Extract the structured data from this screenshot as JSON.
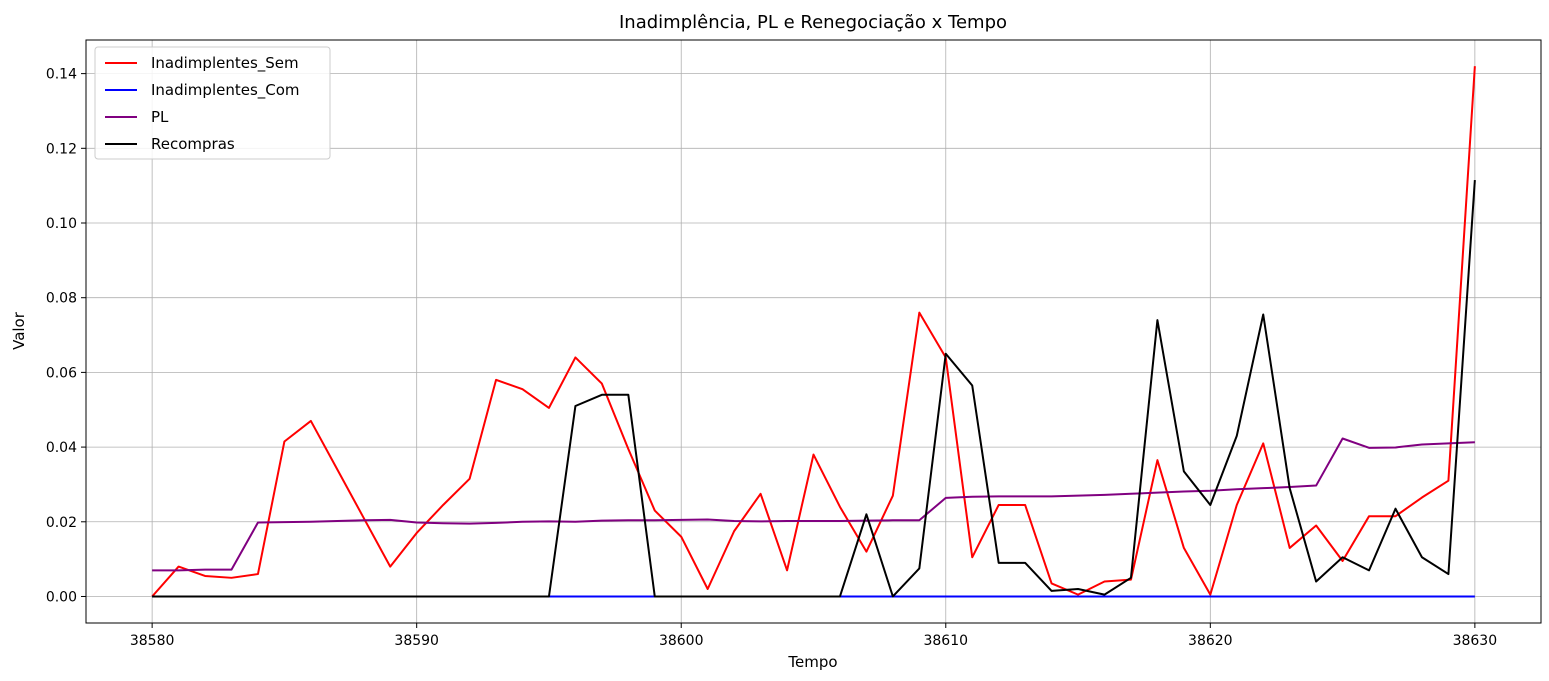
{
  "chart_data": {
    "type": "line",
    "title": "Inadimplência, PL e Renegociação x Tempo",
    "xlabel": "Tempo",
    "ylabel": "Valor",
    "xlim": [
      38577.5,
      38632.5
    ],
    "ylim": [
      -0.0071,
      0.149
    ],
    "xticks": [
      38580,
      38590,
      38600,
      38610,
      38620,
      38630
    ],
    "yticks": [
      0.0,
      0.02,
      0.04,
      0.06,
      0.08,
      0.1,
      0.12,
      0.14
    ],
    "ytick_labels": [
      "0.00",
      "0.02",
      "0.04",
      "0.06",
      "0.08",
      "0.10",
      "0.12",
      "0.14"
    ],
    "grid": true,
    "legend_position": "upper-left",
    "x": [
      38580,
      38581,
      38582,
      38583,
      38584,
      38585,
      38586,
      38587,
      38588,
      38589,
      38590,
      38591,
      38592,
      38593,
      38594,
      38595,
      38596,
      38597,
      38598,
      38599,
      38600,
      38601,
      38602,
      38603,
      38604,
      38605,
      38606,
      38607,
      38608,
      38609,
      38610,
      38611,
      38612,
      38613,
      38614,
      38615,
      38616,
      38617,
      38618,
      38619,
      38620,
      38621,
      38622,
      38623,
      38624,
      38625,
      38626,
      38627,
      38628,
      38629,
      38630
    ],
    "series": [
      {
        "name": "Inadimplentes_Sem",
        "color": "#ff0000",
        "values": [
          0.0,
          0.008,
          0.0055,
          0.005,
          0.006,
          0.0415,
          0.047,
          0.034,
          0.021,
          0.008,
          0.017,
          0.0245,
          0.0315,
          0.058,
          0.0555,
          0.0505,
          0.064,
          0.057,
          0.0395,
          0.023,
          0.016,
          0.002,
          0.0175,
          0.0275,
          0.007,
          0.038,
          0.024,
          0.012,
          0.027,
          0.076,
          0.064,
          0.0105,
          0.0245,
          0.0245,
          0.0035,
          0.0005,
          0.004,
          0.0045,
          0.0365,
          0.013,
          0.0005,
          0.0245,
          0.041,
          0.013,
          0.019,
          0.0095,
          0.0215,
          0.0215,
          0.0265,
          0.031,
          0.142
        ]
      },
      {
        "name": "Inadimplentes_Com",
        "color": "#0000ff",
        "values": [
          0,
          0,
          0,
          0,
          0,
          0,
          0,
          0,
          0,
          0,
          0,
          0,
          0,
          0,
          0,
          0,
          0,
          0,
          0,
          0,
          0,
          0,
          0,
          0,
          0,
          0,
          0,
          0,
          0,
          0,
          0,
          0,
          0,
          0,
          0,
          0,
          0,
          0,
          0,
          0,
          0,
          0,
          0,
          0,
          0,
          0,
          0,
          0,
          0,
          0,
          0
        ]
      },
      {
        "name": "PL",
        "color": "#800080",
        "values": [
          0.007,
          0.007,
          0.0072,
          0.0072,
          0.0198,
          0.0199,
          0.02,
          0.0202,
          0.0204,
          0.0205,
          0.0198,
          0.0196,
          0.0195,
          0.0197,
          0.02,
          0.0201,
          0.02,
          0.0203,
          0.0204,
          0.0204,
          0.0205,
          0.0206,
          0.0202,
          0.0201,
          0.0202,
          0.0202,
          0.0202,
          0.0203,
          0.0204,
          0.0204,
          0.0264,
          0.0267,
          0.0268,
          0.0268,
          0.0268,
          0.027,
          0.0272,
          0.0275,
          0.0278,
          0.0281,
          0.0283,
          0.0287,
          0.029,
          0.0293,
          0.0297,
          0.0423,
          0.0398,
          0.0399,
          0.0407,
          0.041,
          0.0413
        ]
      },
      {
        "name": "Recompras",
        "color": "#000000",
        "values": [
          0,
          0,
          0,
          0,
          0,
          0,
          0,
          0,
          0,
          0,
          0,
          0,
          0,
          0,
          0,
          0,
          0.051,
          0.054,
          0.054,
          0,
          0,
          0,
          0,
          0,
          0,
          0,
          0,
          0.022,
          0,
          0.0075,
          0.065,
          0.0565,
          0.009,
          0.009,
          0.0015,
          0.002,
          0.0005,
          0.005,
          0.074,
          0.0335,
          0.0245,
          0.043,
          0.0755,
          0.029,
          0.004,
          0.0105,
          0.007,
          0.0235,
          0.0105,
          0.006,
          0.1115
        ]
      }
    ]
  }
}
